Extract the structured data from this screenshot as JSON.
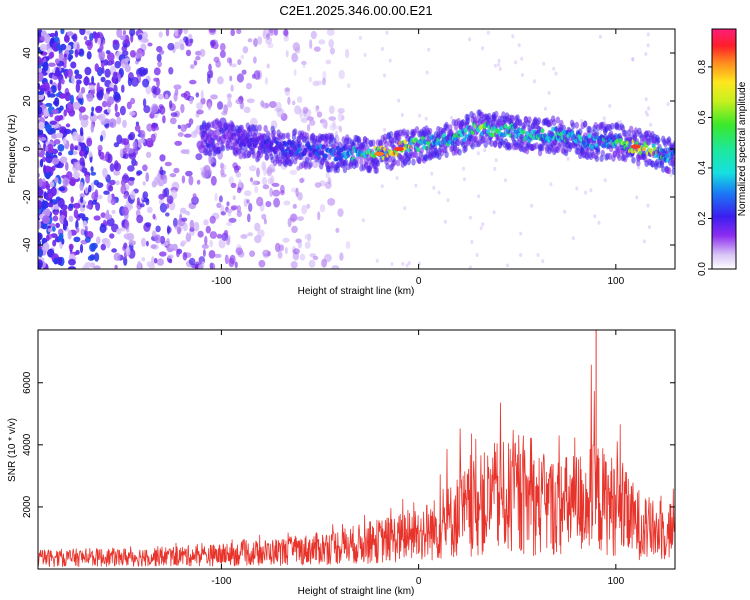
{
  "title": "C2E1.2025.346.00.00.E21",
  "colors": {
    "signal": "#e8332b",
    "spectrogram_low": "#7a1ee8",
    "spectrogram_mid": "#16e0e0",
    "spectrogram_high": "#ff1020"
  },
  "chart_data": [
    {
      "type": "heatmap",
      "title": "C2E1.2025.346.00.00.E21",
      "xlabel": "Height of straight line (km)",
      "ylabel": "Frequency (Hz)",
      "xlim": [
        -193,
        130
      ],
      "ylim": [
        -50,
        50
      ],
      "xticks": [
        -100,
        0,
        100
      ],
      "xtick_labels": [
        "-100",
        "0",
        "100"
      ],
      "yticks": [
        -40,
        -20,
        0,
        20,
        40
      ],
      "ytick_labels": [
        "-40",
        "-20",
        "0",
        "20",
        "40"
      ],
      "ridge": {
        "description": "dominant spectral ridge (frequency in Hz vs height in km)",
        "x": [
          -100,
          -80,
          -60,
          -40,
          -20,
          -10,
          0,
          10,
          20,
          30,
          40,
          50,
          60,
          70,
          80,
          90,
          100,
          110,
          120,
          130
        ],
        "y": [
          5,
          2,
          0,
          -2,
          -2,
          0,
          2,
          3,
          5,
          9,
          8,
          7,
          5,
          6,
          4,
          3,
          3,
          1,
          -1,
          -3
        ],
        "peak_amplitude": [
          0.15,
          0.3,
          0.35,
          0.4,
          0.8,
          0.85,
          0.6,
          0.55,
          0.6,
          0.7,
          0.65,
          0.6,
          0.55,
          0.6,
          0.55,
          0.5,
          0.6,
          0.85,
          0.7,
          0.4
        ]
      },
      "noise_region": {
        "x": [
          -193,
          -35
        ],
        "amplitude": [
          0.0,
          0.35
        ]
      },
      "colorbar": {
        "label": "Normalized spectral amplitude",
        "range": [
          0.0,
          0.95
        ],
        "ticks": [
          0.0,
          0.2,
          0.4,
          0.6,
          0.8
        ],
        "tick_labels": [
          "0.0",
          "0.2",
          "0.4",
          "0.6",
          "0.8"
        ]
      }
    },
    {
      "type": "line",
      "xlabel": "Height of straight line (km)",
      "ylabel": "SNR (10 * v/v)",
      "xlim": [
        -193,
        130
      ],
      "ylim": [
        0,
        7700
      ],
      "xticks": [
        -100,
        0,
        100
      ],
      "xtick_labels": [
        "-100",
        "0",
        "100"
      ],
      "yticks": [
        2000,
        4000,
        6000
      ],
      "ytick_labels": [
        "2000",
        "4000",
        "6000"
      ],
      "series": [
        {
          "name": "SNR",
          "envelope": {
            "x": [
              -193,
              -150,
              -100,
              -60,
              -30,
              -10,
              0,
              10,
              20,
              30,
              40,
              50,
              60,
              70,
              80,
              90,
              100,
              110,
              120,
              130
            ],
            "mean": [
              350,
              380,
              450,
              600,
              800,
              1000,
              1150,
              1300,
              1700,
              2000,
              2300,
              2250,
              2100,
              2000,
              2100,
              2300,
              2000,
              1500,
              1200,
              1300
            ],
            "max": [
              700,
              750,
              900,
              1300,
              1800,
              2400,
              2600,
              3300,
              4900,
              5000,
              5500,
              5300,
              5100,
              5000,
              5300,
              7700,
              5200,
              3600,
              2800,
              3600
            ]
          }
        }
      ]
    }
  ]
}
